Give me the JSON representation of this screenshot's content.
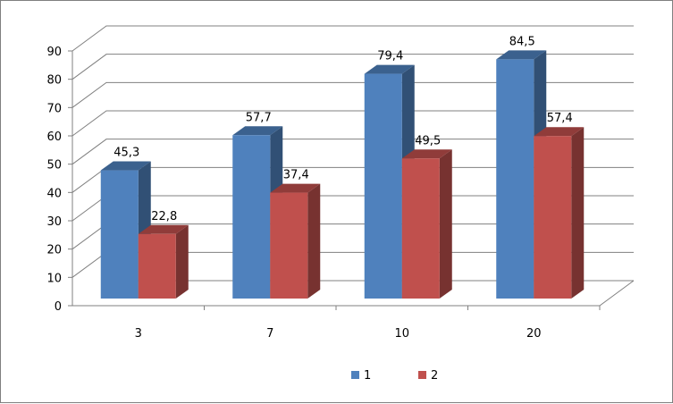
{
  "chart_data": {
    "type": "bar",
    "title": "",
    "xlabel": "",
    "ylabel": "",
    "categories": [
      "3",
      "7",
      "10",
      "20"
    ],
    "series": [
      {
        "name": "1",
        "values": [
          45.3,
          57.7,
          79.4,
          84.5
        ],
        "labels": [
          "45,3",
          "57,7",
          "79,4",
          "84,5"
        ],
        "color": "#4f81bd"
      },
      {
        "name": "2",
        "values": [
          22.8,
          37.4,
          49.5,
          57.4
        ],
        "labels": [
          "22,8",
          "37,4",
          "49,5",
          "57,4"
        ],
        "color": "#c0504d"
      }
    ],
    "ylim": [
      0,
      90
    ],
    "yticks": [
      "0",
      "10",
      "20",
      "30",
      "40",
      "50",
      "60",
      "70",
      "80",
      "90"
    ],
    "grid": true,
    "style": "3d-clustered-column",
    "legend_position": "bottom"
  }
}
